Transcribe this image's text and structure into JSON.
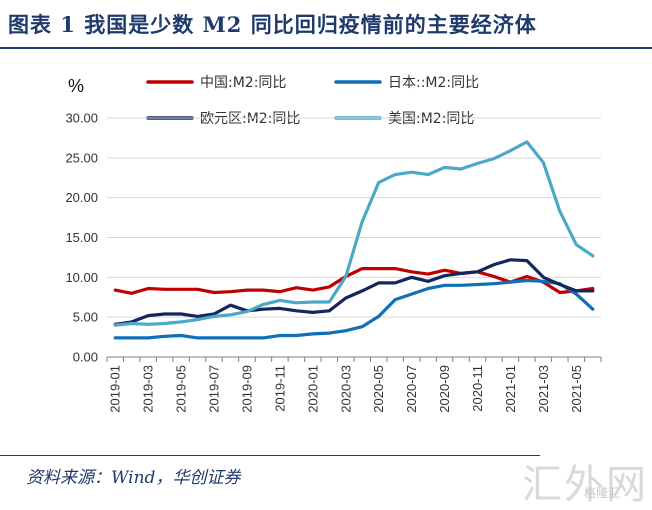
{
  "page": {
    "title": "图表 1   我国是少数 M2 同比回归疫情前的主要经济体",
    "source": "资料来源：Wind，华创证券",
    "watermark": "汇外网",
    "watermark_sub": "格隆汇"
  },
  "chart_data": {
    "type": "line",
    "title": "",
    "unit_label": "%",
    "xlabel": "",
    "ylabel": "%",
    "ylim": [
      0,
      30
    ],
    "yticks": [
      "0.00",
      "5.00",
      "10.00",
      "15.00",
      "20.00",
      "25.00",
      "30.00"
    ],
    "legend_position": "top",
    "x": [
      "2019-01",
      "2019-02",
      "2019-03",
      "2019-04",
      "2019-05",
      "2019-06",
      "2019-07",
      "2019-08",
      "2019-09",
      "2019-10",
      "2019-11",
      "2019-12",
      "2020-01",
      "2020-02",
      "2020-03",
      "2020-04",
      "2020-05",
      "2020-06",
      "2020-07",
      "2020-08",
      "2020-09",
      "2020-10",
      "2020-11",
      "2020-12",
      "2021-01",
      "2021-02",
      "2021-03",
      "2021-04",
      "2021-05",
      "2021-06"
    ],
    "xtick_labels": [
      "2019-01",
      "2019-03",
      "2019-05",
      "2019-07",
      "2019-09",
      "2019-11",
      "2020-01",
      "2020-03",
      "2020-05",
      "2020-07",
      "2020-09",
      "2020-11",
      "2021-01",
      "2021-03",
      "2021-05"
    ],
    "series": [
      {
        "name": "中国:M2:同比",
        "color": "#c00000",
        "values": [
          8.4,
          8.0,
          8.6,
          8.5,
          8.5,
          8.5,
          8.1,
          8.2,
          8.4,
          8.4,
          8.2,
          8.7,
          8.4,
          8.8,
          10.1,
          11.1,
          11.1,
          11.1,
          10.7,
          10.4,
          10.9,
          10.5,
          10.7,
          10.1,
          9.4,
          10.1,
          9.4,
          8.1,
          8.3,
          8.6
        ]
      },
      {
        "name": "日本::M2:同比",
        "color": "#0f6fb8",
        "values": [
          2.4,
          2.4,
          2.4,
          2.6,
          2.7,
          2.4,
          2.4,
          2.4,
          2.4,
          2.4,
          2.7,
          2.7,
          2.9,
          3.0,
          3.3,
          3.8,
          5.1,
          7.2,
          7.9,
          8.6,
          9.0,
          9.0,
          9.1,
          9.2,
          9.4,
          9.6,
          9.5,
          9.2,
          7.9,
          6.0
        ]
      },
      {
        "name": "欧元区:M2:同比",
        "color": "#14265e",
        "values": [
          4.1,
          4.4,
          5.2,
          5.4,
          5.4,
          5.1,
          5.4,
          6.5,
          5.8,
          6.0,
          6.1,
          5.8,
          5.6,
          5.8,
          7.4,
          8.3,
          9.3,
          9.3,
          10.0,
          9.5,
          10.2,
          10.5,
          10.7,
          11.6,
          12.2,
          12.1,
          10.0,
          9.1,
          8.3,
          8.3
        ]
      },
      {
        "name": "美国:M2:同比",
        "color": "#4ba8c6",
        "values": [
          4.0,
          4.2,
          4.1,
          4.2,
          4.4,
          4.7,
          5.1,
          5.3,
          5.7,
          6.6,
          7.1,
          6.8,
          6.9,
          6.9,
          10.1,
          17.0,
          21.9,
          22.9,
          23.2,
          22.9,
          23.8,
          23.6,
          24.3,
          24.9,
          25.9,
          27.0,
          24.4,
          18.3,
          14.1,
          12.7
        ]
      }
    ]
  }
}
